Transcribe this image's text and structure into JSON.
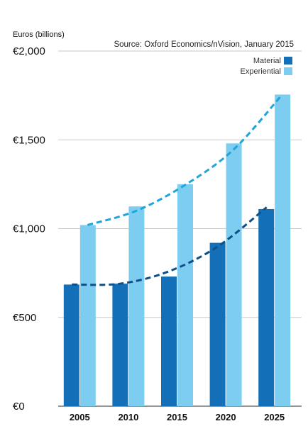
{
  "chart_data": {
    "type": "bar",
    "title": "",
    "ylabel": "Euros (billions)",
    "xlabel": "",
    "source": "Source: Oxford Economics/nVision, January 2015",
    "categories": [
      "2005",
      "2010",
      "2015",
      "2020",
      "2025"
    ],
    "ylim": [
      0,
      2000
    ],
    "yticks": [
      0,
      500,
      1000,
      1500,
      2000
    ],
    "ytick_labels": [
      "€0",
      "€500",
      "€1,000",
      "€1,500",
      "€2,000"
    ],
    "grid": true,
    "legend_position": "top-right",
    "series": [
      {
        "name": "Material",
        "values": [
          685,
          690,
          730,
          920,
          1110
        ],
        "color": "#1370b8",
        "trend": [
          685,
          690,
          760,
          900,
          1120
        ],
        "trend_color": "#0e4f86"
      },
      {
        "name": "Experiential",
        "values": [
          1020,
          1125,
          1250,
          1480,
          1755
        ],
        "color": "#7dcdf1",
        "trend": [
          1020,
          1100,
          1245,
          1445,
          1755
        ],
        "trend_color": "#1ea6d8"
      }
    ]
  }
}
